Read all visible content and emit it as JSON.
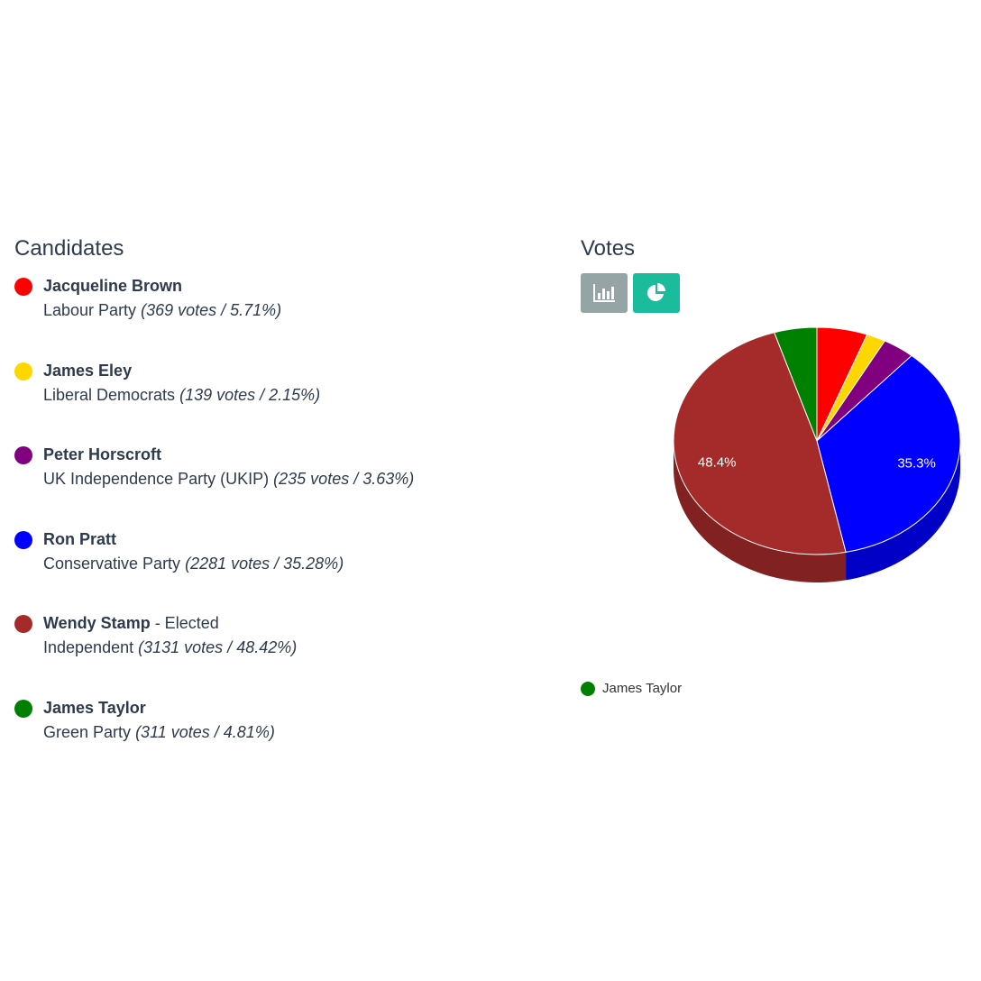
{
  "candidates_panel": {
    "title": "Candidates",
    "items": [
      {
        "name": "Jacqueline Brown",
        "suffix": "",
        "party": "Labour Party",
        "stats": "(369 votes / 5.71%)",
        "color": "#ff0000"
      },
      {
        "name": "James Eley",
        "suffix": "",
        "party": "Liberal Democrats",
        "stats": "(139 votes / 2.15%)",
        "color": "#ffd700"
      },
      {
        "name": "Peter Horscroft",
        "suffix": "",
        "party": "UK Independence Party (UKIP)",
        "stats": "(235 votes / 3.63%)",
        "color": "#800080"
      },
      {
        "name": "Ron Pratt",
        "suffix": "",
        "party": "Conservative Party",
        "stats": "(2281 votes / 35.28%)",
        "color": "#0000ff"
      },
      {
        "name": "Wendy Stamp",
        "suffix": " - Elected",
        "party": "Independent",
        "stats": "(3131 votes / 48.42%)",
        "color": "#a52a2a"
      },
      {
        "name": "James Taylor",
        "suffix": "",
        "party": "Green Party",
        "stats": "(311 votes / 4.81%)",
        "color": "#008000"
      }
    ]
  },
  "votes_panel": {
    "title": "Votes",
    "buttons": {
      "bar_icon": "bar-chart-icon",
      "pie_icon": "pie-chart-icon"
    },
    "legend": [
      {
        "label": "James Taylor",
        "color": "#008000"
      }
    ]
  },
  "chart_data": {
    "type": "pie",
    "categories": [
      "Jacqueline Brown",
      "James Eley",
      "Peter Horscroft",
      "Ron Pratt",
      "Wendy Stamp",
      "James Taylor"
    ],
    "values": [
      369,
      139,
      235,
      2281,
      3131,
      311
    ],
    "colors": [
      "#ff0000",
      "#ffd700",
      "#800080",
      "#0000ff",
      "#a52a2a",
      "#008000"
    ],
    "data_labels": [
      {
        "category": "Ron Pratt",
        "text": "35.3%"
      },
      {
        "category": "Wendy Stamp",
        "text": "48.4%"
      }
    ],
    "style": "3d",
    "legend_position": "bottom-left"
  }
}
